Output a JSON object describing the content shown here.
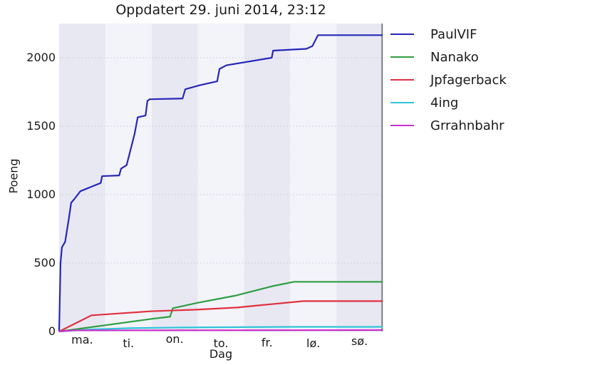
{
  "title": "Oppdatert 29. juni 2014, 23:12",
  "chart_data": {
    "type": "line",
    "title": "Oppdatert 29. juni 2014, 23:12",
    "xlabel": "Dag",
    "ylabel": "Poeng",
    "x_tick_labels": [
      "ma.",
      "ti.",
      "on.",
      "to.",
      "fr.",
      "lø.",
      "sø."
    ],
    "y_ticks": [
      0,
      500,
      1000,
      1500,
      2000
    ],
    "xlim": [
      0,
      7
    ],
    "ylim": [
      0,
      2250
    ],
    "grid": "dotted",
    "legend_position": "outside-upper-right",
    "background_bands": {
      "dark": "#e8e8f3",
      "light": "#f3f3fa"
    },
    "colors": {
      "grid_h": "#c9c9d6",
      "grid_v": "#f2f2f9",
      "right_spine": "#5b5b6e",
      "text": "#1a1a1a"
    },
    "series": [
      {
        "name": "PaulVIF",
        "color": "#2727b8",
        "points": [
          [
            0,
            0
          ],
          [
            0.03,
            500
          ],
          [
            0.06,
            615
          ],
          [
            0.13,
            655
          ],
          [
            0.21,
            825
          ],
          [
            0.26,
            940
          ],
          [
            0.33,
            968
          ],
          [
            0.46,
            1025
          ],
          [
            0.9,
            1085
          ],
          [
            0.93,
            1135
          ],
          [
            1.3,
            1140
          ],
          [
            1.34,
            1190
          ],
          [
            1.46,
            1215
          ],
          [
            1.63,
            1440
          ],
          [
            1.7,
            1565
          ],
          [
            1.87,
            1578
          ],
          [
            1.91,
            1685
          ],
          [
            1.96,
            1697
          ],
          [
            2.67,
            1702
          ],
          [
            2.73,
            1770
          ],
          [
            3.05,
            1800
          ],
          [
            3.42,
            1828
          ],
          [
            3.47,
            1918
          ],
          [
            3.62,
            1945
          ],
          [
            4.6,
            2000
          ],
          [
            4.63,
            2052
          ],
          [
            5.35,
            2065
          ],
          [
            5.48,
            2085
          ],
          [
            5.6,
            2165
          ],
          [
            7,
            2165
          ]
        ]
      },
      {
        "name": "Nanako",
        "color": "#2e9e41",
        "points": [
          [
            0,
            0
          ],
          [
            1.0,
            46
          ],
          [
            2.0,
            92
          ],
          [
            2.4,
            108
          ],
          [
            2.46,
            170
          ],
          [
            3.0,
            210
          ],
          [
            3.8,
            261
          ],
          [
            4.6,
            330
          ],
          [
            5.08,
            363
          ],
          [
            7,
            363
          ]
        ]
      },
      {
        "name": "Jpfagerback",
        "color": "#e0303e",
        "points": [
          [
            0,
            0
          ],
          [
            0.7,
            118
          ],
          [
            2.0,
            148
          ],
          [
            3.0,
            160
          ],
          [
            3.85,
            175
          ],
          [
            4.3,
            190
          ],
          [
            5.28,
            222
          ],
          [
            7,
            222
          ]
        ]
      },
      {
        "name": "4ing",
        "color": "#2fc4d8",
        "points": [
          [
            0,
            0
          ],
          [
            0.7,
            15
          ],
          [
            1.5,
            24
          ],
          [
            2.5,
            29
          ],
          [
            4.0,
            32
          ],
          [
            5.0,
            34
          ],
          [
            7,
            34
          ]
        ]
      },
      {
        "name": "Grrahnbahr",
        "color": "#cb2fcb",
        "points": [
          [
            0,
            0
          ],
          [
            0.3,
            8
          ],
          [
            7,
            10
          ]
        ]
      }
    ]
  }
}
